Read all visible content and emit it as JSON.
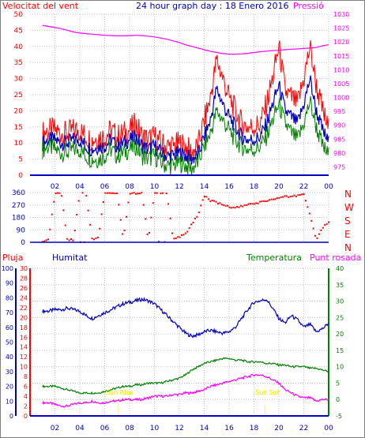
{
  "labels": {
    "wind_title": "Velocitat del vent",
    "graph_title": "24 hour graph day : 18 Enero 2016",
    "pressure_title": "Pressió",
    "rain_title": "Pluja",
    "humidity_title": "Humitat",
    "temperature_title": "Temperatura",
    "dewpoint_title": "Punt rosada",
    "sunrise": "Sun Rise",
    "sunset": "Sun Set",
    "compass": [
      "N",
      "W",
      "S",
      "E",
      "N"
    ]
  },
  "colors": {
    "wind": "#ff0000",
    "wind_avg": "#0000c0",
    "wind_min": "#008000",
    "pressure": "#ff00ff",
    "direction": "#ff0000",
    "humidity": "#0000c0",
    "temperature": "#008000",
    "dewpoint": "#ff00ff",
    "rain": "#ff0000",
    "sun": "#ffff00",
    "axis": "#0000c0",
    "grid": "#c0c0c0"
  },
  "chart_data": [
    {
      "type": "line",
      "title": "24 hour graph day : 18 Enero 2016",
      "x_ticks": [
        "02",
        "04",
        "06",
        "08",
        "10",
        "12",
        "14",
        "16",
        "18",
        "20",
        "22",
        "00"
      ],
      "y_left": {
        "label": "Velocitat del vent",
        "ticks": [
          0,
          5,
          10,
          15,
          20,
          25,
          30,
          35,
          40,
          45,
          50
        ],
        "ylim": [
          0,
          50
        ]
      },
      "y_right": {
        "label": "Pressió",
        "ticks": [
          975,
          980,
          985,
          990,
          995,
          1000,
          1005,
          1010,
          1015,
          1020,
          1025,
          1030
        ],
        "ylim": [
          972,
          1030
        ]
      },
      "x": [
        1,
        1.5,
        2,
        2.5,
        3,
        3.5,
        4,
        4.5,
        5,
        5.5,
        6,
        6.5,
        7,
        7.5,
        8,
        8.5,
        9,
        9.5,
        10,
        10.5,
        11,
        11.5,
        12,
        12.5,
        13,
        13.5,
        14,
        14.5,
        15,
        15.5,
        16,
        16.5,
        17,
        17.5,
        18,
        18.5,
        19,
        19.5,
        20,
        20.5,
        21,
        21.5,
        22,
        22.5,
        23,
        23.5,
        24
      ],
      "series": [
        {
          "name": "Velocitat del vent",
          "values": [
            13,
            14,
            14,
            13,
            13,
            14,
            14,
            12,
            11,
            12,
            12,
            14,
            12,
            13,
            14,
            16,
            12,
            11,
            12,
            10,
            9,
            9,
            10,
            9,
            7,
            9,
            17,
            24,
            36,
            30,
            24,
            20,
            16,
            15,
            15,
            16,
            22,
            30,
            40,
            26,
            24,
            22,
            30,
            40,
            28,
            20,
            14
          ]
        },
        {
          "values": [
            10,
            11,
            11,
            10,
            10,
            11,
            11,
            9,
            8,
            9,
            9,
            11,
            9,
            10,
            11,
            12,
            9,
            8,
            9,
            7,
            6,
            6,
            7,
            6,
            5,
            6,
            12,
            17,
            27,
            22,
            18,
            15,
            12,
            11,
            11,
            12,
            16,
            22,
            28,
            20,
            18,
            16,
            22,
            30,
            20,
            14,
            10
          ]
        },
        {
          "values": [
            8,
            9,
            8,
            7,
            7,
            8,
            8,
            6,
            5,
            5,
            6,
            8,
            6,
            7,
            8,
            9,
            6,
            5,
            6,
            4,
            3,
            3,
            4,
            3,
            2,
            4,
            9,
            13,
            20,
            17,
            14,
            11,
            9,
            8,
            8,
            9,
            12,
            17,
            22,
            16,
            13,
            11,
            16,
            23,
            15,
            9,
            6
          ]
        },
        {
          "name": "Pressió",
          "axis": "right",
          "values": [
            1026.0,
            1025.6,
            1025.2,
            1024.8,
            1024.2,
            1023.6,
            1023.2,
            1023.0,
            1022.8,
            1022.6,
            1022.4,
            1022.3,
            1022.2,
            1022.2,
            1022.3,
            1022.4,
            1022.3,
            1022.1,
            1021.8,
            1021.4,
            1021.0,
            1020.4,
            1019.8,
            1019.0,
            1018.4,
            1017.8,
            1017.2,
            1016.6,
            1016.2,
            1015.8,
            1015.6,
            1015.6,
            1015.7,
            1015.9,
            1016.2,
            1016.5,
            1016.7,
            1016.9,
            1017.0,
            1017.2,
            1017.4,
            1017.5,
            1017.7,
            1017.8,
            1018.0,
            1018.6,
            1019.0
          ]
        }
      ]
    },
    {
      "type": "scatter",
      "y_ticks": [
        0,
        90,
        180,
        270,
        360
      ],
      "ylim": [
        0,
        360
      ],
      "x": [
        1,
        1.5,
        2,
        2.5,
        3,
        3.5,
        4,
        4.5,
        5,
        5.5,
        6,
        6.5,
        7,
        7.5,
        8,
        8.5,
        9,
        9.5,
        10,
        10.5,
        11,
        11.5,
        12,
        12.5,
        13,
        13.5,
        14,
        14.5,
        15,
        15.5,
        16,
        16.5,
        17,
        17.5,
        18,
        18.5,
        19,
        19.5,
        20,
        20.5,
        21,
        21.5,
        22,
        22.5,
        23,
        23.5,
        24
      ],
      "values": [
        10,
        20,
        350,
        355,
        20,
        15,
        360,
        358,
        15,
        40,
        355,
        360,
        358,
        25,
        350,
        355,
        360,
        15,
        358,
        360,
        355,
        20,
        40,
        60,
        130,
        200,
        340,
        300,
        290,
        270,
        255,
        250,
        260,
        270,
        280,
        290,
        300,
        310,
        320,
        330,
        330,
        340,
        350,
        200,
        20,
        100,
        150
      ]
    },
    {
      "type": "line",
      "x_ticks": [
        "02",
        "04",
        "06",
        "08",
        "10",
        "12",
        "14",
        "16",
        "18",
        "20",
        "22",
        "00"
      ],
      "y_far_left": {
        "ticks": [
          0,
          10,
          20,
          30,
          40,
          50,
          60,
          70,
          80,
          90,
          100
        ],
        "ylim": [
          0,
          100
        ]
      },
      "y_left": {
        "ticks": [
          0,
          2,
          4,
          6,
          8,
          10,
          12,
          14,
          16,
          18,
          20,
          22,
          24,
          26,
          28,
          30
        ],
        "ylim": [
          0,
          30
        ]
      },
      "y_right": {
        "ticks": [
          -5,
          0,
          5,
          10,
          15,
          20,
          25,
          30,
          35,
          40
        ],
        "ylim": [
          -5,
          40
        ]
      },
      "x": [
        1,
        1.5,
        2,
        2.5,
        3,
        3.5,
        4,
        4.5,
        5,
        5.5,
        6,
        6.5,
        7,
        7.5,
        8,
        8.5,
        9,
        9.5,
        10,
        10.5,
        11,
        11.5,
        12,
        12.5,
        13,
        13.5,
        14,
        14.5,
        15,
        15.5,
        16,
        16.5,
        17,
        17.5,
        18,
        18.5,
        19,
        19.5,
        20,
        20.5,
        21,
        21.5,
        22,
        22.5,
        23,
        23.5,
        24
      ],
      "series": [
        {
          "name": "Humitat",
          "axis": "far_left",
          "values": [
            71,
            71,
            72,
            72,
            73,
            72,
            71,
            68,
            66,
            68,
            70,
            72,
            74,
            76,
            77,
            78,
            79,
            78,
            76,
            72,
            68,
            64,
            60,
            56,
            54,
            55,
            57,
            58,
            57,
            56,
            57,
            60,
            66,
            72,
            77,
            78,
            79,
            73,
            66,
            63,
            68,
            65,
            60,
            62,
            57,
            59,
            63
          ]
        },
        {
          "name": "Temperatura",
          "axis": "right",
          "values": [
            4,
            4,
            4,
            3.5,
            3,
            2.5,
            2,
            2,
            2,
            2,
            2.5,
            3,
            3.5,
            4,
            4,
            4.5,
            4.5,
            5,
            5,
            5,
            5.5,
            6,
            6.5,
            7.5,
            9,
            10,
            11,
            11.5,
            12,
            12.5,
            12.5,
            12,
            12,
            11.5,
            11.5,
            11.5,
            11,
            11,
            10.5,
            10.5,
            10,
            10,
            10,
            9.5,
            9.5,
            9,
            8.5
          ]
        },
        {
          "name": "Punt rosada",
          "axis": "right",
          "values": [
            -1,
            -1,
            -1.5,
            -2,
            -2,
            -1.5,
            -1,
            -1,
            -0.5,
            -1,
            -1,
            -0.5,
            -0.5,
            0,
            0,
            0,
            0,
            0.5,
            1,
            1,
            1,
            1.5,
            1.5,
            2,
            2,
            2.5,
            3,
            4,
            4.5,
            5,
            5.5,
            6,
            6.5,
            7,
            7.5,
            7.5,
            7,
            6,
            5,
            3,
            2,
            1,
            0.5,
            0.5,
            -0.5,
            0,
            0
          ]
        },
        {
          "name": "Pluja",
          "axis": "left",
          "values": [
            0,
            0,
            0,
            0,
            0,
            0,
            0,
            0,
            0,
            0,
            0,
            0,
            0,
            0,
            0,
            0,
            0,
            0,
            0,
            0,
            0,
            0,
            0,
            0,
            0,
            0,
            0,
            0,
            0,
            0,
            0,
            0,
            0,
            0,
            0,
            0,
            0,
            0,
            0,
            0,
            0,
            0,
            0,
            0,
            0,
            0,
            0
          ]
        }
      ],
      "sunrise_hour": 7.1,
      "sunset_hour": 18.9
    }
  ]
}
